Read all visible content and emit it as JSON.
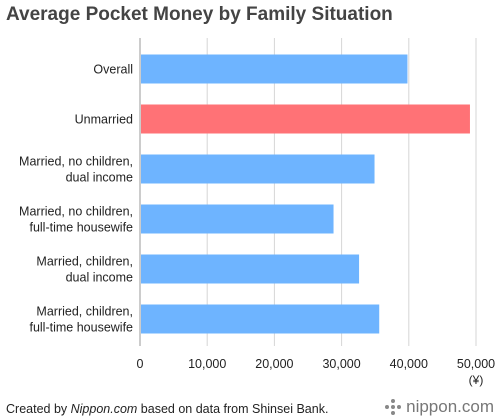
{
  "chart_data": {
    "type": "bar",
    "orientation": "horizontal",
    "title": "Average Pocket Money by Family Situation",
    "categories": [
      [
        "Overall"
      ],
      [
        "Unmarried"
      ],
      [
        "Married, no children,",
        "dual income"
      ],
      [
        "Married, no children,",
        "full-time housewife"
      ],
      [
        "Married, children,",
        "dual income"
      ],
      [
        "Married, children,",
        "full-time housewife"
      ]
    ],
    "values": [
      39800,
      49100,
      34900,
      28800,
      32600,
      35600
    ],
    "colors": [
      "#6EB4FF",
      "#FF7276",
      "#6EB4FF",
      "#6EB4FF",
      "#6EB4FF",
      "#6EB4FF"
    ],
    "xlim": [
      0,
      50000
    ],
    "ticks": [
      0,
      10000,
      20000,
      30000,
      40000,
      50000
    ],
    "tick_labels": [
      "0",
      "10,000",
      "20,000",
      "30,000",
      "40,000",
      "50,000"
    ],
    "unit": "(¥)",
    "grid": true
  },
  "footer": {
    "prefix": "Created by ",
    "site": "Nippon.com",
    "suffix": " based on data from Shinsei Bank."
  },
  "brand": {
    "text": "nippon.com",
    "icon": "nippon-logo-icon"
  }
}
